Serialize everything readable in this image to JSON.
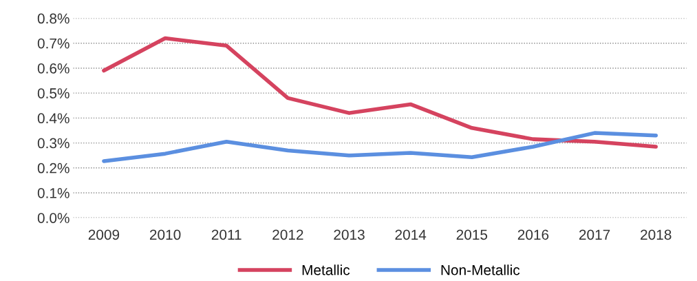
{
  "chart_data": {
    "type": "line",
    "categories": [
      "2009",
      "2010",
      "2011",
      "2012",
      "2013",
      "2014",
      "2015",
      "2016",
      "2017",
      "2018"
    ],
    "series": [
      {
        "name": "Metallic",
        "color": "#d5435f",
        "values": [
          0.59,
          0.72,
          0.69,
          0.48,
          0.42,
          0.455,
          0.36,
          0.315,
          0.305,
          0.285
        ]
      },
      {
        "name": "Non-Metallic",
        "color": "#5b8fe0",
        "values": [
          0.227,
          0.257,
          0.305,
          0.27,
          0.25,
          0.26,
          0.243,
          0.285,
          0.34,
          0.33
        ]
      }
    ],
    "ylim": [
      0,
      0.8
    ],
    "yticks": [
      {
        "value": 0,
        "label": "0.0%"
      },
      {
        "value": 0.1,
        "label": "0.1%"
      },
      {
        "value": 0.2,
        "label": "0.2%"
      },
      {
        "value": 0.3,
        "label": "0.3%"
      },
      {
        "value": 0.4,
        "label": "0.4%"
      },
      {
        "value": 0.5,
        "label": "0.5%"
      },
      {
        "value": 0.6,
        "label": "0.6%"
      },
      {
        "value": 0.7,
        "label": "0.7%"
      },
      {
        "value": 0.8,
        "label": "0.8%"
      }
    ],
    "grid": "y",
    "legend": "bottom",
    "marker": "none",
    "line_style": "solid"
  }
}
